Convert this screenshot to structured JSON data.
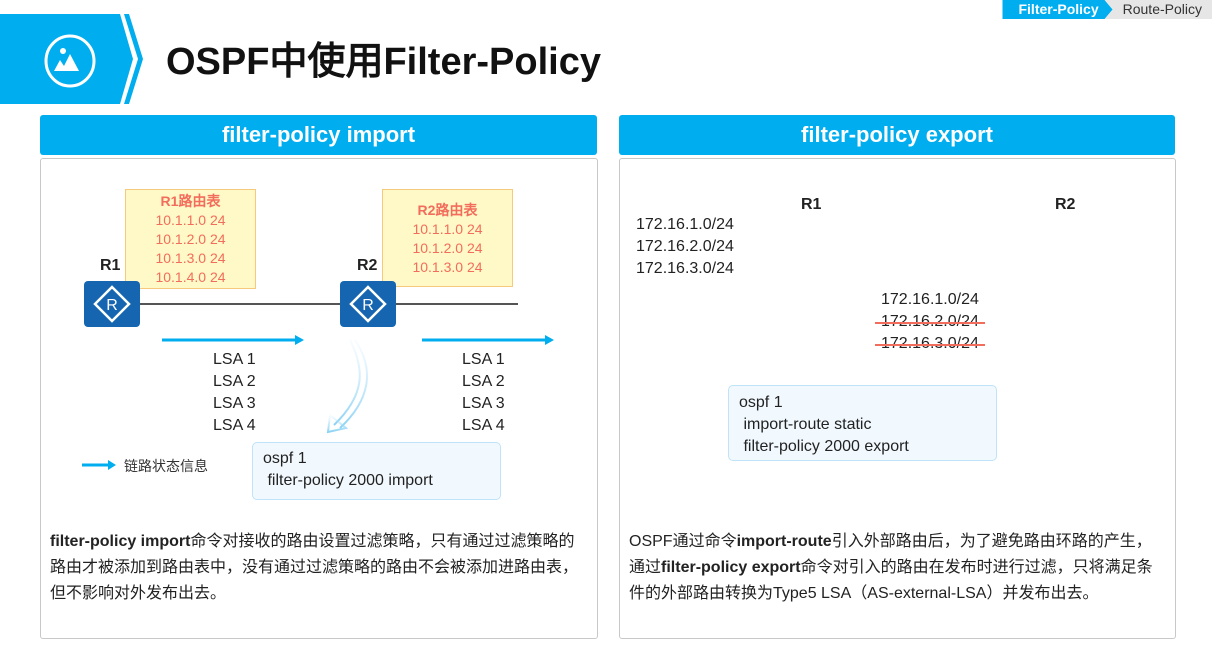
{
  "header": {
    "title": "OSPF中使用Filter-Policy",
    "icon": "image-icon",
    "breadcrumb": [
      "Filter-Policy",
      "Route-Policy"
    ]
  },
  "colors": {
    "accent": "#00aeef",
    "router": "#1565b0",
    "table_text": "#f26d5b",
    "table_bg": "#fff9c8"
  },
  "import_panel": {
    "title": "filter-policy import",
    "r1": {
      "label": "R1",
      "table_title": "R1路由表",
      "routes": [
        "10.1.1.0 24",
        "10.1.2.0 24",
        "10.1.3.0 24",
        "10.1.4.0 24"
      ]
    },
    "r2": {
      "label": "R2",
      "table_title": "R2路由表",
      "routes": [
        "10.1.1.0 24",
        "10.1.2.0 24",
        "10.1.3.0 24"
      ]
    },
    "lsa_left": [
      "LSA 1",
      "LSA 2",
      "LSA 3",
      "LSA 4"
    ],
    "lsa_right": [
      "LSA 1",
      "LSA 2",
      "LSA 3",
      "LSA 4"
    ],
    "legend": "链路状态信息",
    "config": [
      "ospf 1",
      " filter-policy 2000 import"
    ],
    "desc_bold": "filter-policy import",
    "desc": "命令对接收的路由设置过滤策略，只有通过过滤策略的路由才被添加到路由表中，没有通过过滤策略的路由不会被添加进路由表，但不影响对外发布出去。"
  },
  "export_panel": {
    "title": "filter-policy export",
    "r1": {
      "label": "R1"
    },
    "r2": {
      "label": "R2"
    },
    "static_routes": [
      "172.16.1.0/24",
      "172.16.2.0/24",
      "172.16.3.0/24"
    ],
    "advertised": [
      {
        "route": "172.16.1.0/24",
        "filtered": false
      },
      {
        "route": "172.16.2.0/24",
        "filtered": true
      },
      {
        "route": "172.16.3.0/24",
        "filtered": true
      }
    ],
    "config": [
      "ospf 1",
      " import-route static",
      " filter-policy 2000 export"
    ],
    "desc_parts": [
      "OSPF通过命令",
      "import-route",
      "引入外部路由后，为了避免路由环路的产生，通过",
      "filter-policy export",
      "命令对引入的路由在发布时进行过滤，只将满足条件的外部路由转换为Type5 LSA（AS-external-LSA）并发布出去。"
    ]
  }
}
